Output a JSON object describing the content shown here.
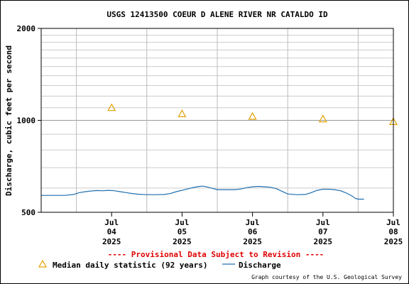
{
  "chart_data": {
    "type": "line",
    "title": "USGS 12413500 COEUR D ALENE RIVER NR CATALDO ID",
    "ylabel": "Discharge, cubic feet per second",
    "yscale": "log",
    "ylim": [
      500,
      2000
    ],
    "y_ticks": [
      {
        "value": 500,
        "label": "500"
      },
      {
        "value": 1000,
        "label": "1000"
      },
      {
        "value": 2000,
        "label": "2000"
      }
    ],
    "y_minor_gridlines": [
      600,
      700,
      800,
      900,
      1100,
      1200,
      1300,
      1400,
      1500,
      1600,
      1700,
      1800,
      1900
    ],
    "x_start": "2025-07-03 12:00",
    "x_end": "2025-07-08 12:00",
    "x_ticks": [
      {
        "value": "2025-07-04 12:00",
        "month": "Jul",
        "day": "04",
        "year": "2025"
      },
      {
        "value": "2025-07-05 12:00",
        "month": "Jul",
        "day": "05",
        "year": "2025"
      },
      {
        "value": "2025-07-06 12:00",
        "month": "Jul",
        "day": "06",
        "year": "2025"
      },
      {
        "value": "2025-07-07 12:00",
        "month": "Jul",
        "day": "07",
        "year": "2025"
      },
      {
        "value": "2025-07-08 12:00",
        "month": "Jul",
        "day": "08",
        "year": "2025"
      }
    ],
    "x_day_boundaries": [
      "2025-07-04 00:00",
      "2025-07-05 00:00",
      "2025-07-06 00:00",
      "2025-07-07 00:00",
      "2025-07-08 00:00"
    ],
    "grid": true,
    "series": [
      {
        "name": "Discharge",
        "kind": "line",
        "color": "#1f6fb0",
        "points": [
          [
            "2025-07-03 12:00",
            568
          ],
          [
            "2025-07-03 16:00",
            568
          ],
          [
            "2025-07-03 20:00",
            568
          ],
          [
            "2025-07-03 23:00",
            572
          ],
          [
            "2025-07-04 01:00",
            580
          ],
          [
            "2025-07-04 03:00",
            584
          ],
          [
            "2025-07-04 05:00",
            587
          ],
          [
            "2025-07-04 07:00",
            589
          ],
          [
            "2025-07-04 09:00",
            588
          ],
          [
            "2025-07-04 11:00",
            590
          ],
          [
            "2025-07-04 13:00",
            588
          ],
          [
            "2025-07-04 15:00",
            584
          ],
          [
            "2025-07-04 17:00",
            580
          ],
          [
            "2025-07-04 19:00",
            576
          ],
          [
            "2025-07-04 21:00",
            573
          ],
          [
            "2025-07-05 00:00",
            571
          ],
          [
            "2025-07-05 03:00",
            571
          ],
          [
            "2025-07-05 06:00",
            572
          ],
          [
            "2025-07-05 08:00",
            576
          ],
          [
            "2025-07-05 10:00",
            584
          ],
          [
            "2025-07-05 12:00",
            590
          ],
          [
            "2025-07-05 14:00",
            597
          ],
          [
            "2025-07-05 16:00",
            603
          ],
          [
            "2025-07-05 18:00",
            608
          ],
          [
            "2025-07-05 19:00",
            609
          ],
          [
            "2025-07-05 20:00",
            607
          ],
          [
            "2025-07-05 22:00",
            600
          ],
          [
            "2025-07-06 00:00",
            593
          ],
          [
            "2025-07-06 03:00",
            593
          ],
          [
            "2025-07-06 06:00",
            593
          ],
          [
            "2025-07-06 08:00",
            596
          ],
          [
            "2025-07-06 10:00",
            602
          ],
          [
            "2025-07-06 12:00",
            606
          ],
          [
            "2025-07-06 14:00",
            608
          ],
          [
            "2025-07-06 16:00",
            606
          ],
          [
            "2025-07-06 18:00",
            604
          ],
          [
            "2025-07-06 20:00",
            598
          ],
          [
            "2025-07-06 22:00",
            586
          ],
          [
            "2025-07-07 00:00",
            574
          ],
          [
            "2025-07-07 03:00",
            571
          ],
          [
            "2025-07-07 06:00",
            572
          ],
          [
            "2025-07-07 08:00",
            580
          ],
          [
            "2025-07-07 10:00",
            590
          ],
          [
            "2025-07-07 12:00",
            595
          ],
          [
            "2025-07-07 14:00",
            595
          ],
          [
            "2025-07-07 16:00",
            593
          ],
          [
            "2025-07-07 18:00",
            588
          ],
          [
            "2025-07-07 20:00",
            578
          ],
          [
            "2025-07-07 22:00",
            565
          ],
          [
            "2025-07-07 23:00",
            555
          ],
          [
            "2025-07-08 00:00",
            552
          ],
          [
            "2025-07-08 02:00",
            552
          ]
        ]
      },
      {
        "name": "Median daily statistic (92 years)",
        "kind": "triangle",
        "color": "#e0a000",
        "points": [
          [
            "2025-07-04 12:00",
            1100
          ],
          [
            "2025-07-05 12:00",
            1050
          ],
          [
            "2025-07-06 12:00",
            1030
          ],
          [
            "2025-07-07 12:00",
            1010
          ],
          [
            "2025-07-08 12:00",
            990
          ]
        ]
      }
    ]
  },
  "provisional_notice": "---- Provisional Data Subject to Revision ----",
  "legend": {
    "median_label": "Median daily statistic (92 years)",
    "discharge_label": "Discharge"
  },
  "credit": "Graph courtesy of the U.S. Geological Survey",
  "colors": {
    "notice": "#e00000",
    "grid": "#cccccc",
    "median": "#e0a000",
    "discharge": "#1f6fb0"
  }
}
